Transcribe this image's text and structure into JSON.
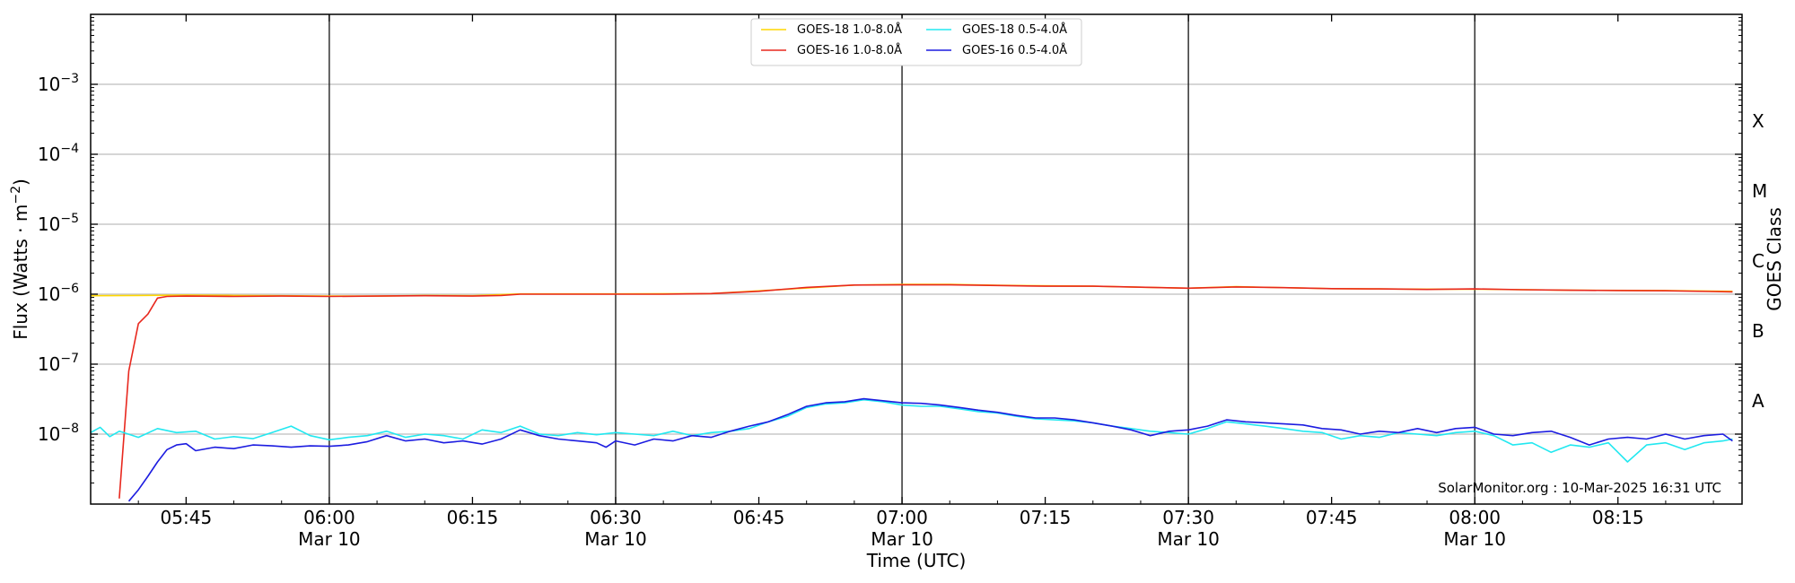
{
  "chart_data": {
    "type": "line",
    "x_axis": {
      "label": "Time (UTC)",
      "range": [
        "05:35",
        "08:28"
      ],
      "ticks": [
        {
          "time": "05:45",
          "label": "05:45",
          "date": ""
        },
        {
          "time": "06:00",
          "label": "06:00",
          "date": "Mar 10"
        },
        {
          "time": "06:15",
          "label": "06:15",
          "date": ""
        },
        {
          "time": "06:30",
          "label": "06:30",
          "date": "Mar 10"
        },
        {
          "time": "06:45",
          "label": "06:45",
          "date": ""
        },
        {
          "time": "07:00",
          "label": "07:00",
          "date": "Mar 10"
        },
        {
          "time": "07:15",
          "label": "07:15",
          "date": ""
        },
        {
          "time": "07:30",
          "label": "07:30",
          "date": "Mar 10"
        },
        {
          "time": "07:45",
          "label": "07:45",
          "date": ""
        },
        {
          "time": "08:00",
          "label": "08:00",
          "date": "Mar 10"
        },
        {
          "time": "08:15",
          "label": "08:15",
          "date": ""
        }
      ],
      "vertical_lines": [
        "06:00",
        "06:30",
        "07:00",
        "07:30",
        "08:00"
      ]
    },
    "y_axis": {
      "label_prefix": "Flux (Watts · m",
      "label_sup": "−2",
      "label_suffix": ")",
      "scale": "log",
      "range": [
        1e-09,
        0.01
      ],
      "ticks": [
        {
          "value": 0.001,
          "base": "10",
          "exp": "−3"
        },
        {
          "value": 0.0001,
          "base": "10",
          "exp": "−4"
        },
        {
          "value": 1e-05,
          "base": "10",
          "exp": "−5"
        },
        {
          "value": 1e-06,
          "base": "10",
          "exp": "−6"
        },
        {
          "value": 1e-07,
          "base": "10",
          "exp": "−7"
        },
        {
          "value": 1e-08,
          "base": "10",
          "exp": "−8"
        }
      ],
      "gridlines": [
        0.001,
        0.0001,
        1e-05,
        1e-06,
        1e-07,
        1e-08
      ]
    },
    "y2_axis": {
      "label": "GOES Class",
      "classes": [
        {
          "label": "X",
          "value": 0.0003
        },
        {
          "label": "M",
          "value": 3e-05
        },
        {
          "label": "C",
          "value": 3e-06
        },
        {
          "label": "B",
          "value": 3e-07
        },
        {
          "label": "A",
          "value": 3e-08
        }
      ]
    },
    "legend": {
      "placement": "top-center",
      "columns": 2
    },
    "series": [
      {
        "name": "GOES-18 1.0-8.0Å",
        "color": "#ffd700",
        "points": [
          [
            "05:35",
            9.5e-07
          ],
          [
            "05:40",
            9.6e-07
          ],
          [
            "05:45",
            9.7e-07
          ],
          [
            "05:50",
            9.6e-07
          ],
          [
            "05:55",
            9.5e-07
          ],
          [
            "06:00",
            9.4e-07
          ],
          [
            "06:05",
            9.4e-07
          ],
          [
            "06:10",
            9.6e-07
          ],
          [
            "06:15",
            9.5e-07
          ],
          [
            "06:20",
            1.01e-06
          ],
          [
            "06:30",
            1.01e-06
          ],
          [
            "06:40",
            1.02e-06
          ],
          [
            "06:48",
            1.18e-06
          ],
          [
            "06:55",
            1.35e-06
          ],
          [
            "07:00",
            1.38e-06
          ],
          [
            "07:05",
            1.38e-06
          ],
          [
            "07:10",
            1.34e-06
          ],
          [
            "07:20",
            1.3e-06
          ],
          [
            "07:30",
            1.22e-06
          ],
          [
            "07:35",
            1.28e-06
          ],
          [
            "07:45",
            1.2e-06
          ],
          [
            "07:55",
            1.18e-06
          ],
          [
            "08:00",
            1.18e-06
          ],
          [
            "08:10",
            1.14e-06
          ],
          [
            "08:20",
            1.13e-06
          ],
          [
            "08:27",
            1.1e-06
          ]
        ]
      },
      {
        "name": "GOES-16 1.0-8.0Å",
        "color": "#e8281e",
        "points": [
          [
            "05:38",
            1.2e-09
          ],
          [
            "05:39",
            8e-08
          ],
          [
            "05:40",
            3.8e-07
          ],
          [
            "05:41",
            5.2e-07
          ],
          [
            "05:42",
            8.8e-07
          ],
          [
            "05:43",
            9.3e-07
          ],
          [
            "05:45",
            9.4e-07
          ],
          [
            "05:50",
            9.3e-07
          ],
          [
            "05:55",
            9.4e-07
          ],
          [
            "06:00",
            9.3e-07
          ],
          [
            "06:05",
            9.4e-07
          ],
          [
            "06:10",
            9.5e-07
          ],
          [
            "06:15",
            9.4e-07
          ],
          [
            "06:18",
            9.6e-07
          ],
          [
            "06:20",
            1e-06
          ],
          [
            "06:30",
            1e-06
          ],
          [
            "06:35",
            1e-06
          ],
          [
            "06:40",
            1.02e-06
          ],
          [
            "06:45",
            1.1e-06
          ],
          [
            "06:50",
            1.25e-06
          ],
          [
            "06:55",
            1.35e-06
          ],
          [
            "07:00",
            1.36e-06
          ],
          [
            "07:05",
            1.36e-06
          ],
          [
            "07:10",
            1.33e-06
          ],
          [
            "07:15",
            1.3e-06
          ],
          [
            "07:20",
            1.3e-06
          ],
          [
            "07:25",
            1.26e-06
          ],
          [
            "07:30",
            1.22e-06
          ],
          [
            "07:35",
            1.27e-06
          ],
          [
            "07:40",
            1.24e-06
          ],
          [
            "07:45",
            1.2e-06
          ],
          [
            "07:50",
            1.19e-06
          ],
          [
            "07:55",
            1.17e-06
          ],
          [
            "08:00",
            1.19e-06
          ],
          [
            "08:05",
            1.16e-06
          ],
          [
            "08:10",
            1.14e-06
          ],
          [
            "08:15",
            1.13e-06
          ],
          [
            "08:20",
            1.12e-06
          ],
          [
            "08:27",
            1.08e-06
          ]
        ]
      },
      {
        "name": "GOES-18 0.5-4.0Å",
        "color": "#22e8f0",
        "points": [
          [
            "05:35",
            1.05e-08
          ],
          [
            "05:36",
            1.25e-08
          ],
          [
            "05:37",
            9.2e-09
          ],
          [
            "05:38",
            1.1e-08
          ],
          [
            "05:40",
            9e-09
          ],
          [
            "05:42",
            1.2e-08
          ],
          [
            "05:44",
            1.05e-08
          ],
          [
            "05:46",
            1.1e-08
          ],
          [
            "05:48",
            8.5e-09
          ],
          [
            "05:50",
            9.2e-09
          ],
          [
            "05:52",
            8.6e-09
          ],
          [
            "05:54",
            1.05e-08
          ],
          [
            "05:56",
            1.3e-08
          ],
          [
            "05:58",
            9.5e-09
          ],
          [
            "06:00",
            8.3e-09
          ],
          [
            "06:02",
            9e-09
          ],
          [
            "06:04",
            9.5e-09
          ],
          [
            "06:06",
            1.1e-08
          ],
          [
            "06:08",
            9e-09
          ],
          [
            "06:10",
            1e-08
          ],
          [
            "06:12",
            9.5e-09
          ],
          [
            "06:14",
            8.5e-09
          ],
          [
            "06:16",
            1.15e-08
          ],
          [
            "06:18",
            1.05e-08
          ],
          [
            "06:20",
            1.3e-08
          ],
          [
            "06:22",
            1e-08
          ],
          [
            "06:24",
            9.5e-09
          ],
          [
            "06:26",
            1.05e-08
          ],
          [
            "06:28",
            9.8e-09
          ],
          [
            "06:30",
            1.05e-08
          ],
          [
            "06:32",
            1e-08
          ],
          [
            "06:34",
            9.5e-09
          ],
          [
            "06:36",
            1.1e-08
          ],
          [
            "06:38",
            9.5e-09
          ],
          [
            "06:40",
            1.05e-08
          ],
          [
            "06:42",
            1.1e-08
          ],
          [
            "06:44",
            1.2e-08
          ],
          [
            "06:46",
            1.5e-08
          ],
          [
            "06:48",
            1.8e-08
          ],
          [
            "06:50",
            2.4e-08
          ],
          [
            "06:52",
            2.7e-08
          ],
          [
            "06:54",
            2.8e-08
          ],
          [
            "06:56",
            3.1e-08
          ],
          [
            "06:58",
            2.9e-08
          ],
          [
            "07:00",
            2.6e-08
          ],
          [
            "07:02",
            2.5e-08
          ],
          [
            "07:04",
            2.5e-08
          ],
          [
            "07:06",
            2.3e-08
          ],
          [
            "07:08",
            2.1e-08
          ],
          [
            "07:10",
            2e-08
          ],
          [
            "07:12",
            1.8e-08
          ],
          [
            "07:14",
            1.65e-08
          ],
          [
            "07:16",
            1.6e-08
          ],
          [
            "07:18",
            1.55e-08
          ],
          [
            "07:20",
            1.45e-08
          ],
          [
            "07:22",
            1.3e-08
          ],
          [
            "07:24",
            1.2e-08
          ],
          [
            "07:26",
            1.1e-08
          ],
          [
            "07:28",
            1.05e-08
          ],
          [
            "07:30",
            1e-08
          ],
          [
            "07:32",
            1.2e-08
          ],
          [
            "07:34",
            1.5e-08
          ],
          [
            "07:36",
            1.4e-08
          ],
          [
            "07:38",
            1.3e-08
          ],
          [
            "07:40",
            1.2e-08
          ],
          [
            "07:42",
            1.1e-08
          ],
          [
            "07:44",
            1.05e-08
          ],
          [
            "07:46",
            8.5e-09
          ],
          [
            "07:48",
            9.5e-09
          ],
          [
            "07:50",
            9e-09
          ],
          [
            "07:52",
            1.05e-08
          ],
          [
            "07:54",
            1e-08
          ],
          [
            "07:56",
            9.5e-09
          ],
          [
            "07:58",
            1.05e-08
          ],
          [
            "08:00",
            1.1e-08
          ],
          [
            "08:02",
            9.5e-09
          ],
          [
            "08:04",
            7e-09
          ],
          [
            "08:06",
            7.5e-09
          ],
          [
            "08:08",
            5.5e-09
          ],
          [
            "08:10",
            7e-09
          ],
          [
            "08:12",
            6.5e-09
          ],
          [
            "08:14",
            7.5e-09
          ],
          [
            "08:16",
            4e-09
          ],
          [
            "08:18",
            7e-09
          ],
          [
            "08:20",
            7.5e-09
          ],
          [
            "08:22",
            6e-09
          ],
          [
            "08:24",
            7.5e-09
          ],
          [
            "08:26",
            8e-09
          ],
          [
            "08:27",
            8.5e-09
          ]
        ]
      },
      {
        "name": "GOES-16 0.5-4.0Å",
        "color": "#1c1ce0",
        "points": [
          [
            "05:39",
            1.1e-09
          ],
          [
            "05:40",
            1.6e-09
          ],
          [
            "05:41",
            2.5e-09
          ],
          [
            "05:42",
            4e-09
          ],
          [
            "05:43",
            6e-09
          ],
          [
            "05:44",
            7e-09
          ],
          [
            "05:45",
            7.3e-09
          ],
          [
            "05:46",
            5.8e-09
          ],
          [
            "05:48",
            6.5e-09
          ],
          [
            "05:50",
            6.2e-09
          ],
          [
            "05:52",
            7e-09
          ],
          [
            "05:54",
            6.8e-09
          ],
          [
            "05:56",
            6.5e-09
          ],
          [
            "05:58",
            6.8e-09
          ],
          [
            "06:00",
            6.7e-09
          ],
          [
            "06:02",
            7e-09
          ],
          [
            "06:04",
            7.8e-09
          ],
          [
            "06:06",
            9.5e-09
          ],
          [
            "06:08",
            8e-09
          ],
          [
            "06:10",
            8.5e-09
          ],
          [
            "06:12",
            7.5e-09
          ],
          [
            "06:14",
            8e-09
          ],
          [
            "06:16",
            7.2e-09
          ],
          [
            "06:18",
            8.5e-09
          ],
          [
            "06:20",
            1.15e-08
          ],
          [
            "06:22",
            9.5e-09
          ],
          [
            "06:24",
            8.5e-09
          ],
          [
            "06:26",
            8e-09
          ],
          [
            "06:28",
            7.5e-09
          ],
          [
            "06:29",
            6.5e-09
          ],
          [
            "06:30",
            8e-09
          ],
          [
            "06:32",
            7e-09
          ],
          [
            "06:34",
            8.5e-09
          ],
          [
            "06:36",
            8e-09
          ],
          [
            "06:38",
            9.5e-09
          ],
          [
            "06:40",
            9e-09
          ],
          [
            "06:42",
            1.1e-08
          ],
          [
            "06:44",
            1.3e-08
          ],
          [
            "06:46",
            1.5e-08
          ],
          [
            "06:48",
            1.9e-08
          ],
          [
            "06:50",
            2.5e-08
          ],
          [
            "06:52",
            2.8e-08
          ],
          [
            "06:54",
            2.9e-08
          ],
          [
            "06:56",
            3.2e-08
          ],
          [
            "06:58",
            3e-08
          ],
          [
            "07:00",
            2.8e-08
          ],
          [
            "07:02",
            2.75e-08
          ],
          [
            "07:04",
            2.6e-08
          ],
          [
            "07:06",
            2.4e-08
          ],
          [
            "07:08",
            2.2e-08
          ],
          [
            "07:10",
            2.05e-08
          ],
          [
            "07:12",
            1.85e-08
          ],
          [
            "07:14",
            1.7e-08
          ],
          [
            "07:16",
            1.7e-08
          ],
          [
            "07:18",
            1.6e-08
          ],
          [
            "07:20",
            1.45e-08
          ],
          [
            "07:22",
            1.3e-08
          ],
          [
            "07:24",
            1.15e-08
          ],
          [
            "07:26",
            9.5e-09
          ],
          [
            "07:28",
            1.1e-08
          ],
          [
            "07:30",
            1.15e-08
          ],
          [
            "07:32",
            1.3e-08
          ],
          [
            "07:34",
            1.6e-08
          ],
          [
            "07:36",
            1.5e-08
          ],
          [
            "07:38",
            1.45e-08
          ],
          [
            "07:40",
            1.4e-08
          ],
          [
            "07:42",
            1.35e-08
          ],
          [
            "07:44",
            1.2e-08
          ],
          [
            "07:46",
            1.15e-08
          ],
          [
            "07:48",
            1e-08
          ],
          [
            "07:50",
            1.1e-08
          ],
          [
            "07:52",
            1.05e-08
          ],
          [
            "07:54",
            1.2e-08
          ],
          [
            "07:56",
            1.05e-08
          ],
          [
            "07:58",
            1.2e-08
          ],
          [
            "08:00",
            1.25e-08
          ],
          [
            "08:02",
            1e-08
          ],
          [
            "08:04",
            9.5e-09
          ],
          [
            "08:06",
            1.05e-08
          ],
          [
            "08:08",
            1.1e-08
          ],
          [
            "08:10",
            9e-09
          ],
          [
            "08:12",
            7e-09
          ],
          [
            "08:14",
            8.5e-09
          ],
          [
            "08:16",
            9e-09
          ],
          [
            "08:18",
            8.5e-09
          ],
          [
            "08:20",
            1e-08
          ],
          [
            "08:22",
            8.5e-09
          ],
          [
            "08:24",
            9.5e-09
          ],
          [
            "08:26",
            1e-08
          ],
          [
            "08:27",
            8e-09
          ]
        ]
      }
    ],
    "credit": "SolarMonitor.org : 10-Mar-2025 16:31 UTC"
  }
}
